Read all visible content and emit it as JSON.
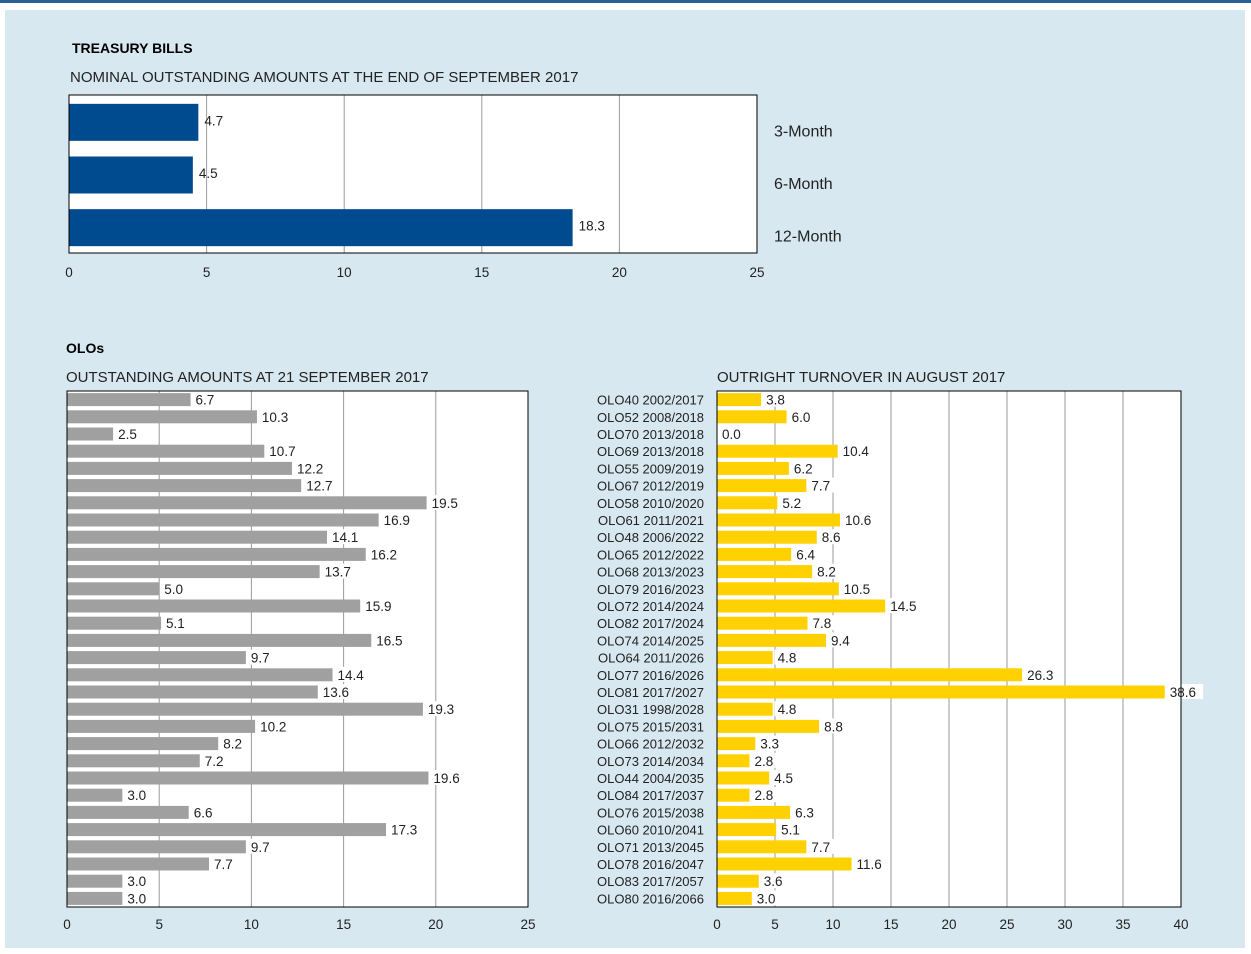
{
  "treasury": {
    "heading": "TREASURY BILLS",
    "chart_data": {
      "type": "bar",
      "orientation": "horizontal",
      "title": "NOMINAL OUTSTANDING AMOUNTS AT THE END OF SEPTEMBER 2017",
      "categories": [
        "3-Month",
        "6-Month",
        "12-Month"
      ],
      "values": [
        4.7,
        4.5,
        18.3
      ],
      "value_labels": [
        "4.7",
        "4.5",
        "18.3"
      ],
      "xlim": [
        0,
        25
      ],
      "ticks": [
        0,
        5,
        10,
        15,
        20,
        25
      ],
      "grid": true,
      "category_labels_side": "right",
      "bar_color": "#004a8f"
    }
  },
  "olos": {
    "heading": "OLOs",
    "bonds": [
      "OLO40 2002/2017",
      "OLO52 2008/2018",
      "OLO70 2013/2018",
      "OLO69 2013/2018",
      "OLO55 2009/2019",
      "OLO67 2012/2019",
      "OLO58 2010/2020",
      "OLO61 2011/2021",
      "OLO48 2006/2022",
      "OLO65 2012/2022",
      "OLO68 2013/2023",
      "OLO79 2016/2023",
      "OLO72 2014/2024",
      "OLO82 2017/2024",
      "OLO74 2014/2025",
      "OLO64 2011/2026",
      "OLO77 2016/2026",
      "OLO81 2017/2027",
      "OLO31 1998/2028",
      "OLO75 2015/2031",
      "OLO66 2012/2032",
      "OLO73 2014/2034",
      "OLO44 2004/2035",
      "OLO84 2017/2037",
      "OLO76 2015/2038",
      "OLO60 2010/2041",
      "OLO71 2013/2045",
      "OLO78 2016/2047",
      "OLO83 2017/2057",
      "OLO80 2016/2066"
    ],
    "outstanding": {
      "chart_data": {
        "type": "bar",
        "orientation": "horizontal",
        "title": "OUTSTANDING AMOUNTS AT 21 SEPTEMBER 2017",
        "values": [
          6.7,
          10.3,
          2.5,
          10.7,
          12.2,
          12.7,
          19.5,
          16.9,
          14.1,
          16.2,
          13.7,
          5.0,
          15.9,
          5.1,
          16.5,
          9.7,
          14.4,
          13.6,
          19.3,
          10.2,
          8.2,
          7.2,
          19.6,
          3.0,
          6.6,
          17.3,
          9.7,
          7.7,
          3.0,
          3.0
        ],
        "value_labels": [
          "6.7",
          "10.3",
          "2.5",
          "10.7",
          "12.2",
          "12.7",
          "19.5",
          "16.9",
          "14.1",
          "16.2",
          "13.7",
          "5.0",
          "15.9",
          "5.1",
          "16.5",
          "9.7",
          "14.4",
          "13.6",
          "19.3",
          "10.2",
          "8.2",
          "7.2",
          "19.6",
          "3.0",
          "6.6",
          "17.3",
          "9.7",
          "7.7",
          "3.0",
          "3.0"
        ],
        "xlim": [
          0,
          25
        ],
        "ticks": [
          0,
          5,
          10,
          15,
          20,
          25
        ],
        "grid": true,
        "bar_color": "#a0a0a0"
      }
    },
    "turnover": {
      "chart_data": {
        "type": "bar",
        "orientation": "horizontal",
        "title": "OUTRIGHT TURNOVER IN AUGUST 2017",
        "values": [
          3.8,
          6.0,
          0.0,
          10.4,
          6.2,
          7.7,
          5.2,
          10.6,
          8.6,
          6.4,
          8.2,
          10.5,
          14.5,
          7.8,
          9.4,
          4.8,
          26.3,
          38.6,
          4.8,
          8.8,
          3.3,
          2.8,
          4.5,
          2.8,
          6.3,
          5.1,
          7.7,
          11.6,
          3.6,
          3.0
        ],
        "value_labels": [
          "3.8",
          "6.0",
          "0.0",
          "10.4",
          "6.2",
          "7.7",
          "5.2",
          "10.6",
          "8.6",
          "6.4",
          "8.2",
          "10.5",
          "14.5",
          "7.8",
          "9.4",
          "4.8",
          "26.3",
          "38.6",
          "4.8",
          "8.8",
          "3.3",
          "2.8",
          "4.5",
          "2.8",
          "6.3",
          "5.1",
          "7.7",
          "11.6",
          "3.6",
          "3.0"
        ],
        "xlim": [
          0,
          40
        ],
        "ticks": [
          0,
          5,
          10,
          15,
          20,
          25,
          30,
          35,
          40
        ],
        "grid": true,
        "bar_color": "#ffd100"
      }
    }
  }
}
